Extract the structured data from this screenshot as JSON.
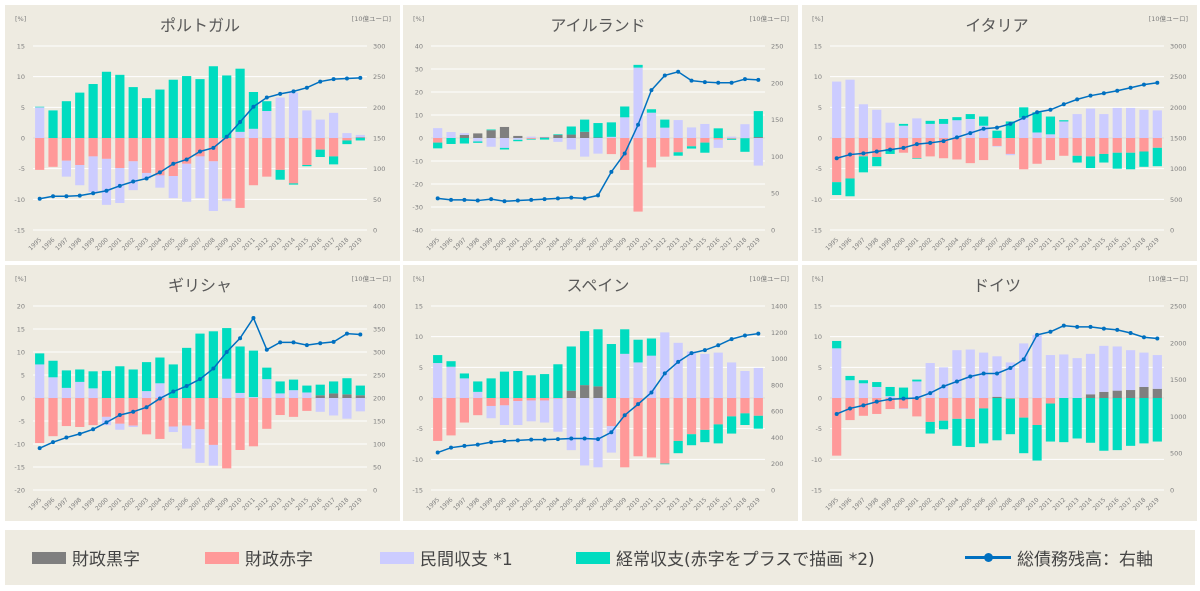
{
  "years": [
    "1995",
    "1996",
    "1997",
    "1998",
    "1999",
    "2000",
    "2001",
    "2002",
    "2003",
    "2004",
    "2005",
    "2006",
    "2007",
    "2008",
    "2009",
    "2010",
    "2011",
    "2012",
    "2013",
    "2014",
    "2015",
    "2016",
    "2017",
    "2018",
    "2019"
  ],
  "colors": {
    "surplus": "#7f7f7f",
    "deficit": "#ff9999",
    "private": "#ccccff",
    "current": "#00dcc0",
    "debt": "#0070c0",
    "grid": "#ffffff",
    "text": "#7f7f7f"
  },
  "legend": {
    "surplus": "財政黒字",
    "deficit": "財政赤字",
    "private": "民間収支 *1",
    "current": "経常収支(赤字をプラスで描画 *2)",
    "debt": "総債務残高：右軸"
  },
  "chart_data": [
    {
      "type": "bar",
      "title": "ポルトガル",
      "left_unit": "[%]",
      "right_unit": "[10億ユーロ]",
      "ylim": [
        -15,
        15
      ],
      "yticks": [
        -15,
        -10,
        -5,
        0,
        5,
        10,
        15
      ],
      "y2lim": [
        0,
        300
      ],
      "y2ticks": [
        0,
        50,
        100,
        150,
        200,
        250,
        300
      ],
      "grid": true,
      "series": [
        {
          "name": "財政黒字",
          "values": [
            0,
            0,
            0,
            0,
            0,
            0,
            0,
            0,
            0,
            0,
            0,
            0,
            0,
            0,
            0,
            0,
            0,
            0,
            0,
            0,
            0,
            0,
            0,
            0,
            0.1
          ]
        },
        {
          "name": "財政赤字",
          "values": [
            -5.2,
            -4.7,
            -3.7,
            -4.4,
            -3.0,
            -3.4,
            -4.9,
            -3.8,
            -5.7,
            -6.1,
            -6.2,
            -4.2,
            -3.0,
            -3.8,
            -9.9,
            -11.4,
            -7.7,
            -6.3,
            -5.2,
            -7.4,
            -4.4,
            -1.9,
            -3.0,
            -0.4,
            0
          ]
        },
        {
          "name": "民間収支 *1",
          "values": [
            5.0,
            0,
            -2.6,
            -3.3,
            -5.8,
            -7.5,
            -5.7,
            -4.7,
            -0.9,
            -2.0,
            -3.6,
            -6.2,
            -6.8,
            -8.1,
            -0.4,
            1.0,
            1.5,
            4.4,
            6.6,
            7.4,
            4.5,
            3.0,
            4.1,
            0.8,
            0.4
          ]
        },
        {
          "name": "経常収支(赤字をプラスで描画 *2)",
          "values": [
            0.1,
            4.5,
            6.0,
            7.4,
            8.8,
            10.8,
            10.3,
            8.3,
            6.5,
            7.9,
            9.5,
            10.1,
            9.6,
            11.7,
            10.2,
            10.3,
            6.0,
            1.6,
            -1.6,
            -0.2,
            -0.2,
            -1.2,
            -1.3,
            -0.6,
            -0.4
          ]
        },
        {
          "name": "総債務残高：右軸",
          "axis": "right",
          "values": [
            51,
            55,
            55,
            56,
            60,
            64,
            72,
            79,
            84,
            94,
            108,
            115,
            128,
            134,
            152,
            176,
            201,
            216,
            222,
            226,
            232,
            242,
            246,
            247,
            248
          ]
        }
      ]
    },
    {
      "type": "bar",
      "title": "アイルランド",
      "left_unit": "[%]",
      "right_unit": "[10億ユーロ]",
      "ylim": [
        -40,
        40
      ],
      "yticks": [
        -40,
        -30,
        -20,
        -10,
        0,
        10,
        20,
        30,
        40
      ],
      "y2lim": [
        0,
        250
      ],
      "y2ticks": [
        0,
        50,
        100,
        150,
        200,
        250
      ],
      "grid": true,
      "series": [
        {
          "name": "財政黒字",
          "values": [
            0,
            0,
            1.3,
            2.0,
            3.4,
            4.8,
            0.9,
            0,
            0.3,
            1.3,
            1.5,
            2.7,
            0.2,
            0,
            0,
            0,
            0,
            0,
            0,
            0,
            0,
            0,
            0,
            0,
            0.4
          ]
        },
        {
          "name": "財政赤字",
          "values": [
            -2.0,
            0,
            0,
            0,
            0,
            0,
            0,
            -0.4,
            0,
            0,
            0,
            0,
            0,
            -7.0,
            -13.9,
            -32.0,
            -12.8,
            -8.1,
            -6.2,
            -3.6,
            -2.0,
            -0.7,
            -0.3,
            -0.1,
            0
          ]
        },
        {
          "name": "民間収支 *1",
          "values": [
            4.3,
            2.6,
            0.8,
            -1.5,
            -3.8,
            -4.3,
            -0.8,
            0.6,
            0.2,
            -1.7,
            -5.0,
            -8.1,
            -6.8,
            0.5,
            9.0,
            30.6,
            11.0,
            4.5,
            7.8,
            4.6,
            6.1,
            -3.6,
            0.6,
            6.0,
            -12.0
          ]
        },
        {
          "name": "経常収支(赤字をプラスで描画 *2)",
          "values": [
            -2.5,
            -2.6,
            -2.4,
            -0.6,
            0.3,
            -0.7,
            -0.6,
            -0.3,
            -0.7,
            0.3,
            3.5,
            5.3,
            6.3,
            6.3,
            4.7,
            1.2,
            1.5,
            3.5,
            -1.5,
            -1.0,
            -4.4,
            4.2,
            -0.5,
            -5.9,
            11.3
          ]
        },
        {
          "name": "総債務残高：右軸",
          "axis": "right",
          "values": [
            43,
            41,
            41,
            40,
            42,
            39,
            40,
            41,
            42,
            43,
            44,
            43,
            47,
            79,
            104,
            143,
            190,
            210,
            215,
            203,
            201,
            200,
            200,
            205,
            204
          ]
        }
      ]
    },
    {
      "type": "bar",
      "title": "イタリア",
      "left_unit": "[%]",
      "right_unit": "[10億ユーロ]",
      "ylim": [
        -15,
        15
      ],
      "yticks": [
        -15,
        -10,
        -5,
        0,
        5,
        10,
        15
      ],
      "y2lim": [
        0,
        3000
      ],
      "y2ticks": [
        0,
        500,
        1000,
        1500,
        2000,
        2500,
        3000
      ],
      "grid": true,
      "series": [
        {
          "name": "財政黒字",
          "values": [
            0,
            0,
            0,
            0,
            0,
            0,
            0,
            0,
            0,
            0,
            0,
            0,
            0,
            0,
            0,
            0,
            0,
            0,
            0,
            0,
            0,
            0,
            0,
            0,
            0
          ]
        },
        {
          "name": "財政赤字",
          "values": [
            -7.2,
            -6.6,
            -3.0,
            -3.1,
            -1.8,
            -2.4,
            -3.3,
            -3.0,
            -3.3,
            -3.5,
            -4.1,
            -3.6,
            -1.3,
            -2.6,
            -5.1,
            -4.2,
            -3.6,
            -2.9,
            -2.9,
            -3.0,
            -2.6,
            -2.4,
            -2.4,
            -2.2,
            -1.6
          ]
        },
        {
          "name": "民間収支 *1",
          "values": [
            9.2,
            9.5,
            5.5,
            4.6,
            2.5,
            2.0,
            3.2,
            2.3,
            2.3,
            2.9,
            3.1,
            2.0,
            -0.1,
            -0.2,
            3.3,
            0.9,
            0.6,
            2.7,
            3.9,
            4.8,
            3.9,
            4.9,
            4.9,
            4.6,
            4.5
          ]
        },
        {
          "name": "経常収支(赤字をプラスで描画 *2)",
          "values": [
            -2.1,
            -2.9,
            -2.6,
            -1.5,
            -0.8,
            0.3,
            -0.1,
            0.5,
            0.8,
            0.5,
            0.8,
            1.5,
            1.2,
            2.7,
            1.7,
            3.3,
            2.9,
            0.2,
            -1.1,
            -1.9,
            -1.4,
            -2.6,
            -2.7,
            -2.5,
            -3.0
          ]
        },
        {
          "name": "総債務残高：右軸",
          "axis": "right",
          "values": [
            1170,
            1230,
            1250,
            1280,
            1310,
            1340,
            1400,
            1420,
            1450,
            1510,
            1580,
            1650,
            1670,
            1730,
            1830,
            1920,
            1960,
            2050,
            2130,
            2190,
            2230,
            2270,
            2320,
            2370,
            2400
          ]
        }
      ]
    },
    {
      "type": "bar",
      "title": "ギリシャ",
      "left_unit": "[%]",
      "right_unit": "[10億ユーロ]",
      "ylim": [
        -20,
        20
      ],
      "yticks": [
        -20,
        -15,
        -10,
        -5,
        0,
        5,
        10,
        15,
        20
      ],
      "y2lim": [
        0,
        400
      ],
      "y2ticks": [
        0,
        50,
        100,
        150,
        200,
        250,
        300,
        350,
        400
      ],
      "grid": true,
      "series": [
        {
          "name": "財政黒字",
          "values": [
            0,
            0,
            0,
            0,
            0,
            0,
            0,
            0,
            0,
            0,
            0,
            0,
            0,
            0,
            0,
            0,
            0,
            0,
            0,
            0,
            0,
            0.6,
            1.0,
            0.8,
            0.6
          ]
        },
        {
          "name": "財政赤字",
          "values": [
            -9.8,
            -8.3,
            -6.1,
            -6.3,
            -5.9,
            -4.1,
            -5.6,
            -6.0,
            -7.9,
            -8.9,
            -6.2,
            -6.0,
            -6.8,
            -10.2,
            -15.3,
            -11.3,
            -10.5,
            -6.7,
            -3.7,
            -4.1,
            -2.8,
            0,
            0,
            0,
            0
          ]
        },
        {
          "name": "民間収支 *1",
          "values": [
            7.3,
            4.5,
            2.2,
            3.5,
            2.1,
            -1.8,
            -1.3,
            -0.3,
            1.5,
            3.2,
            -1.2,
            -5.0,
            -7.3,
            -4.5,
            4.2,
            1.1,
            0.2,
            4.1,
            1.0,
            1.7,
            1.2,
            -3.0,
            -3.8,
            -4.5,
            -2.9
          ]
        },
        {
          "name": "経常収支(赤字をプラスで描画 *2)",
          "values": [
            2.4,
            3.6,
            3.8,
            2.7,
            3.7,
            5.9,
            6.9,
            6.2,
            6.3,
            5.6,
            7.3,
            10.9,
            14.0,
            14.5,
            11.0,
            10.1,
            10.1,
            2.5,
            2.6,
            2.3,
            1.5,
            2.3,
            2.6,
            3.5,
            2.1
          ]
        },
        {
          "name": "総債務残高：右軸",
          "axis": "right",
          "values": [
            91,
            104,
            114,
            122,
            132,
            147,
            163,
            170,
            180,
            199,
            214,
            226,
            241,
            264,
            300,
            330,
            374,
            305,
            321,
            321,
            315,
            319,
            322,
            340,
            338
          ]
        }
      ]
    },
    {
      "type": "bar",
      "title": "スペイン",
      "left_unit": "[%]",
      "right_unit": "[10億ユーロ]",
      "ylim": [
        -15,
        15
      ],
      "yticks": [
        -15,
        -10,
        -5,
        0,
        5,
        10,
        15
      ],
      "y2lim": [
        0,
        1400
      ],
      "y2ticks": [
        0,
        200,
        400,
        600,
        800,
        1000,
        1200,
        1400
      ],
      "grid": true,
      "series": [
        {
          "name": "財政黒字",
          "values": [
            0,
            0,
            0,
            0,
            0,
            0,
            0,
            0,
            0,
            0,
            1.2,
            2.1,
            1.9,
            0,
            0,
            0,
            0,
            0,
            0,
            0,
            0,
            0,
            0,
            0,
            0
          ]
        },
        {
          "name": "財政赤字",
          "values": [
            -7.0,
            -6.1,
            -4.0,
            -2.8,
            -1.3,
            -1.2,
            -0.5,
            -0.4,
            -0.4,
            -0.1,
            0,
            0,
            0,
            -4.6,
            -11.3,
            -9.5,
            -9.7,
            -10.7,
            -7.0,
            -5.9,
            -5.2,
            -4.3,
            -3.0,
            -2.5,
            -2.9
          ]
        },
        {
          "name": "民間収支 *1",
          "values": [
            5.7,
            5.1,
            3.2,
            1.0,
            -2.0,
            -3.2,
            -3.9,
            -3.4,
            -3.6,
            -5.4,
            -8.5,
            -11.0,
            -11.3,
            -4.3,
            7.2,
            5.8,
            6.9,
            10.7,
            9.0,
            7.6,
            7.2,
            7.4,
            5.8,
            4.4,
            4.9
          ]
        },
        {
          "name": "経常収支(赤字をプラスで描画 *2)",
          "values": [
            1.3,
            0.9,
            0.8,
            1.7,
            3.2,
            4.3,
            4.4,
            3.7,
            3.9,
            5.5,
            7.2,
            8.8,
            9.3,
            8.8,
            4.0,
            3.7,
            2.8,
            -0.1,
            -2.0,
            -1.8,
            -2.0,
            -3.1,
            -2.8,
            -1.9,
            -2.1
          ]
        },
        {
          "name": "総債務残高：右軸",
          "axis": "right",
          "values": [
            285,
            322,
            336,
            345,
            364,
            373,
            378,
            383,
            383,
            387,
            392,
            392,
            387,
            439,
            569,
            653,
            742,
            887,
            975,
            1041,
            1064,
            1101,
            1148,
            1176,
            1190
          ]
        }
      ]
    },
    {
      "type": "bar",
      "title": "ドイツ",
      "left_unit": "[%]",
      "right_unit": "[10億ユーロ]",
      "ylim": [
        -15,
        15
      ],
      "yticks": [
        -15,
        -10,
        -5,
        0,
        5,
        10,
        15
      ],
      "y2lim": [
        0,
        2500
      ],
      "y2ticks": [
        0,
        500,
        1000,
        1500,
        2000,
        2500
      ],
      "grid": true,
      "series": [
        {
          "name": "財政黒字",
          "values": [
            0,
            0,
            0,
            0,
            0,
            0,
            0,
            0,
            0,
            0,
            0,
            0,
            0.2,
            0,
            0,
            0,
            0,
            0,
            0,
            0.6,
            1.0,
            1.2,
            1.3,
            1.8,
            1.5
          ]
        },
        {
          "name": "財政赤字",
          "values": [
            -9.4,
            -3.6,
            -2.9,
            -2.6,
            -1.8,
            -1.7,
            -3.0,
            -3.9,
            -3.7,
            -3.4,
            -3.4,
            -1.7,
            0,
            -0.1,
            -3.2,
            -4.4,
            -0.9,
            0,
            0,
            0,
            0,
            0,
            0,
            0,
            0
          ]
        },
        {
          "name": "民間収支 *1",
          "values": [
            8.1,
            2.9,
            2.4,
            1.8,
            0.3,
            -0.1,
            2.7,
            5.7,
            5.0,
            7.8,
            7.9,
            7.4,
            6.6,
            5.8,
            8.9,
            10.3,
            7.0,
            7.1,
            6.5,
            6.6,
            7.5,
            7.2,
            6.5,
            5.6,
            5.5
          ]
        },
        {
          "name": "経常収支(赤字をプラスで描画 *2)",
          "values": [
            1.2,
            0.7,
            0.5,
            0.8,
            1.5,
            1.7,
            0.3,
            -1.9,
            -1.4,
            -4.4,
            -4.6,
            -5.7,
            -6.9,
            -5.8,
            -5.8,
            -5.8,
            -6.2,
            -7.2,
            -6.6,
            -7.3,
            -8.6,
            -8.5,
            -7.8,
            -7.4,
            -7.1
          ]
        },
        {
          "name": "総債務残高：右軸",
          "axis": "right",
          "values": [
            1033,
            1108,
            1150,
            1200,
            1233,
            1242,
            1250,
            1317,
            1408,
            1475,
            1542,
            1583,
            1583,
            1658,
            1775,
            2108,
            2150,
            2233,
            2217,
            2217,
            2192,
            2175,
            2133,
            2075,
            2058
          ]
        }
      ]
    }
  ]
}
